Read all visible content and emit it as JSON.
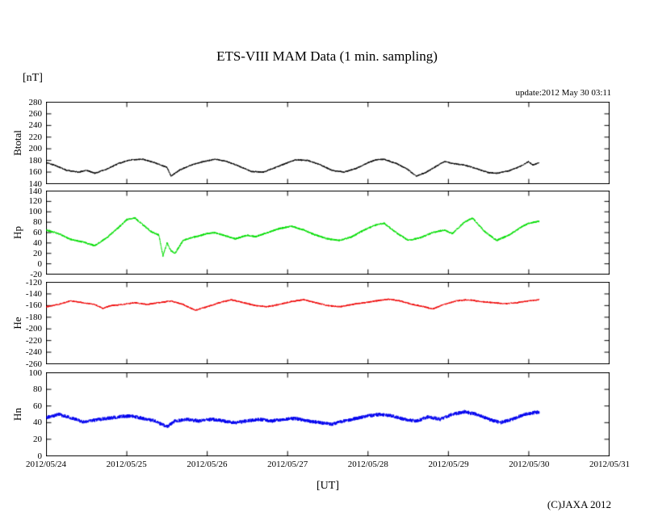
{
  "title": "ETS-VIII MAM Data (1 min. sampling)",
  "unit_label": "[nT]",
  "update_label": "update:2012 May 30 03:11",
  "xaxis_label": "[UT]",
  "copyright": "(C)JAXA 2012",
  "chart_data": {
    "type": "line",
    "title": "ETS-VIII MAM Data (1 min. sampling)",
    "xlabel": "[UT]",
    "ylabel_unit": "[nT]",
    "x_tick_labels": [
      "2012/05/24",
      "2012/05/25",
      "2012/05/26",
      "2012/05/27",
      "2012/05/28",
      "2012/05/29",
      "2012/05/30",
      "2012/05/31"
    ],
    "x_range_days": [
      0,
      7
    ],
    "data_end_day": 6.13,
    "grid": false,
    "panels": [
      {
        "name": "Btotal",
        "color": "#000000",
        "ylim": [
          140,
          280
        ],
        "ytick_step": 20,
        "noise": 1.2,
        "points": [
          [
            0,
            176
          ],
          [
            0.1,
            172
          ],
          [
            0.25,
            163
          ],
          [
            0.4,
            160
          ],
          [
            0.5,
            163
          ],
          [
            0.6,
            158
          ],
          [
            0.75,
            165
          ],
          [
            0.9,
            175
          ],
          [
            1.05,
            181
          ],
          [
            1.2,
            182
          ],
          [
            1.35,
            176
          ],
          [
            1.5,
            168
          ],
          [
            1.55,
            153
          ],
          [
            1.65,
            163
          ],
          [
            1.8,
            172
          ],
          [
            1.95,
            178
          ],
          [
            2.1,
            182
          ],
          [
            2.25,
            178
          ],
          [
            2.4,
            170
          ],
          [
            2.55,
            161
          ],
          [
            2.7,
            160
          ],
          [
            2.85,
            168
          ],
          [
            3.0,
            176
          ],
          [
            3.1,
            181
          ],
          [
            3.25,
            180
          ],
          [
            3.4,
            173
          ],
          [
            3.55,
            163
          ],
          [
            3.7,
            160
          ],
          [
            3.85,
            166
          ],
          [
            4.0,
            176
          ],
          [
            4.1,
            181
          ],
          [
            4.2,
            182
          ],
          [
            4.35,
            175
          ],
          [
            4.5,
            164
          ],
          [
            4.6,
            153
          ],
          [
            4.7,
            158
          ],
          [
            4.85,
            170
          ],
          [
            4.95,
            178
          ],
          [
            5.05,
            175
          ],
          [
            5.2,
            172
          ],
          [
            5.35,
            166
          ],
          [
            5.5,
            159
          ],
          [
            5.6,
            158
          ],
          [
            5.75,
            162
          ],
          [
            5.9,
            170
          ],
          [
            6.0,
            178
          ],
          [
            6.05,
            172
          ],
          [
            6.13,
            176
          ]
        ]
      },
      {
        "name": "Hp",
        "color": "#00dd00",
        "ylim": [
          -20,
          140
        ],
        "ytick_step": 20,
        "noise": 1.8,
        "points": [
          [
            0,
            65
          ],
          [
            0.15,
            58
          ],
          [
            0.3,
            47
          ],
          [
            0.45,
            42
          ],
          [
            0.6,
            35
          ],
          [
            0.75,
            50
          ],
          [
            0.9,
            70
          ],
          [
            1.0,
            85
          ],
          [
            1.1,
            88
          ],
          [
            1.2,
            75
          ],
          [
            1.3,
            62
          ],
          [
            1.4,
            55
          ],
          [
            1.45,
            15
          ],
          [
            1.5,
            40
          ],
          [
            1.55,
            25
          ],
          [
            1.6,
            20
          ],
          [
            1.7,
            45
          ],
          [
            1.85,
            52
          ],
          [
            2.0,
            58
          ],
          [
            2.1,
            60
          ],
          [
            2.2,
            55
          ],
          [
            2.35,
            48
          ],
          [
            2.5,
            55
          ],
          [
            2.6,
            52
          ],
          [
            2.75,
            60
          ],
          [
            2.9,
            68
          ],
          [
            3.05,
            72
          ],
          [
            3.2,
            65
          ],
          [
            3.35,
            55
          ],
          [
            3.5,
            48
          ],
          [
            3.65,
            45
          ],
          [
            3.8,
            52
          ],
          [
            3.95,
            65
          ],
          [
            4.1,
            75
          ],
          [
            4.2,
            78
          ],
          [
            4.35,
            60
          ],
          [
            4.5,
            45
          ],
          [
            4.65,
            50
          ],
          [
            4.8,
            60
          ],
          [
            4.95,
            65
          ],
          [
            5.05,
            58
          ],
          [
            5.2,
            80
          ],
          [
            5.3,
            88
          ],
          [
            5.45,
            62
          ],
          [
            5.6,
            45
          ],
          [
            5.75,
            55
          ],
          [
            5.9,
            70
          ],
          [
            6.0,
            78
          ],
          [
            6.13,
            82
          ]
        ]
      },
      {
        "name": "He",
        "color": "#ee0000",
        "ylim": [
          -260,
          -120
        ],
        "ytick_step": 20,
        "noise": 1.3,
        "points": [
          [
            0,
            -162
          ],
          [
            0.15,
            -158
          ],
          [
            0.3,
            -152
          ],
          [
            0.45,
            -155
          ],
          [
            0.6,
            -158
          ],
          [
            0.7,
            -165
          ],
          [
            0.8,
            -160
          ],
          [
            0.95,
            -158
          ],
          [
            1.1,
            -155
          ],
          [
            1.25,
            -158
          ],
          [
            1.4,
            -155
          ],
          [
            1.55,
            -152
          ],
          [
            1.7,
            -158
          ],
          [
            1.85,
            -168
          ],
          [
            2.0,
            -162
          ],
          [
            2.15,
            -155
          ],
          [
            2.3,
            -150
          ],
          [
            2.45,
            -155
          ],
          [
            2.6,
            -160
          ],
          [
            2.75,
            -162
          ],
          [
            2.9,
            -158
          ],
          [
            3.05,
            -153
          ],
          [
            3.2,
            -150
          ],
          [
            3.35,
            -155
          ],
          [
            3.5,
            -160
          ],
          [
            3.65,
            -162
          ],
          [
            3.8,
            -158
          ],
          [
            3.95,
            -155
          ],
          [
            4.1,
            -152
          ],
          [
            4.25,
            -149
          ],
          [
            4.4,
            -152
          ],
          [
            4.55,
            -158
          ],
          [
            4.7,
            -162
          ],
          [
            4.8,
            -166
          ],
          [
            4.95,
            -158
          ],
          [
            5.1,
            -152
          ],
          [
            5.25,
            -150
          ],
          [
            5.4,
            -153
          ],
          [
            5.55,
            -155
          ],
          [
            5.7,
            -157
          ],
          [
            5.85,
            -155
          ],
          [
            6.0,
            -152
          ],
          [
            6.13,
            -150
          ]
        ]
      },
      {
        "name": "Hn",
        "color": "#0000ee",
        "ylim": [
          0,
          100
        ],
        "ytick_step": 20,
        "noise": 2.2,
        "points": [
          [
            0,
            46
          ],
          [
            0.15,
            50
          ],
          [
            0.3,
            46
          ],
          [
            0.45,
            41
          ],
          [
            0.6,
            43
          ],
          [
            0.75,
            45
          ],
          [
            0.9,
            47
          ],
          [
            1.05,
            48
          ],
          [
            1.2,
            45
          ],
          [
            1.35,
            42
          ],
          [
            1.5,
            35
          ],
          [
            1.6,
            42
          ],
          [
            1.75,
            44
          ],
          [
            1.9,
            42
          ],
          [
            2.05,
            44
          ],
          [
            2.2,
            42
          ],
          [
            2.35,
            40
          ],
          [
            2.5,
            42
          ],
          [
            2.65,
            44
          ],
          [
            2.8,
            42
          ],
          [
            2.95,
            44
          ],
          [
            3.1,
            45
          ],
          [
            3.25,
            42
          ],
          [
            3.4,
            40
          ],
          [
            3.55,
            38
          ],
          [
            3.7,
            42
          ],
          [
            3.85,
            45
          ],
          [
            4.0,
            48
          ],
          [
            4.15,
            50
          ],
          [
            4.3,
            48
          ],
          [
            4.45,
            44
          ],
          [
            4.6,
            42
          ],
          [
            4.75,
            47
          ],
          [
            4.9,
            44
          ],
          [
            5.05,
            50
          ],
          [
            5.2,
            53
          ],
          [
            5.35,
            50
          ],
          [
            5.5,
            44
          ],
          [
            5.65,
            40
          ],
          [
            5.8,
            44
          ],
          [
            5.95,
            50
          ],
          [
            6.13,
            53
          ]
        ]
      }
    ]
  }
}
